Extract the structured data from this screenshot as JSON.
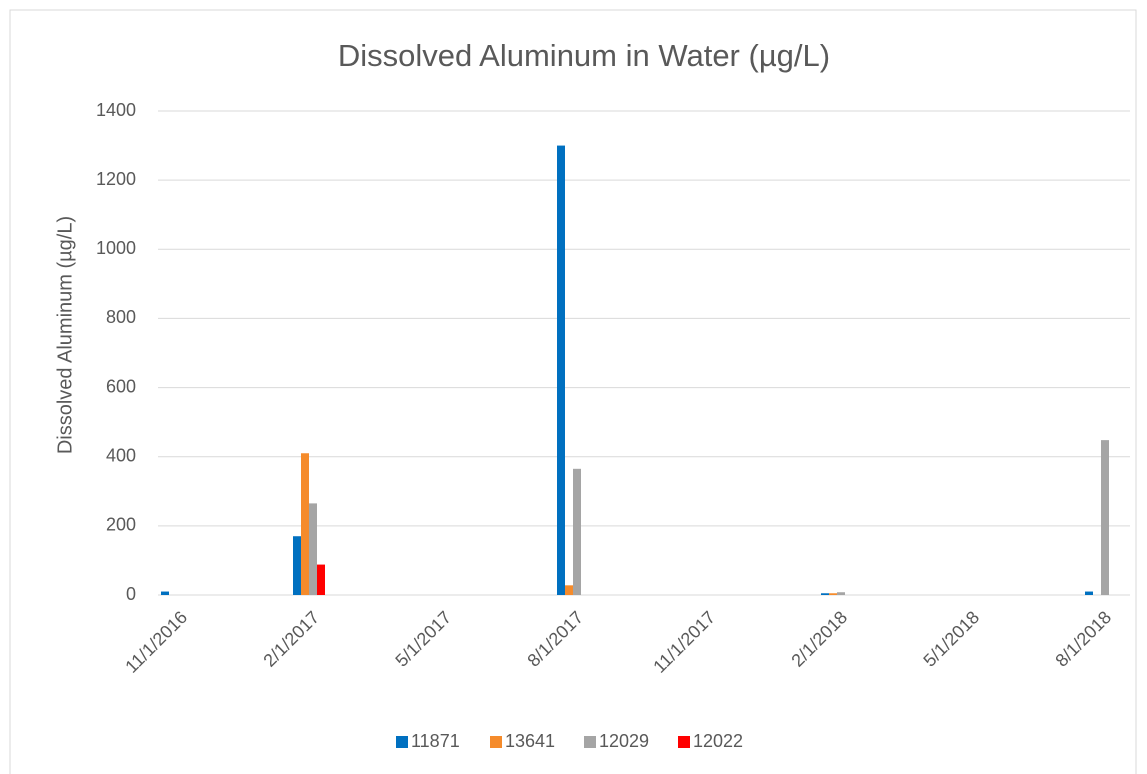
{
  "chart_data": {
    "type": "bar",
    "title": "Dissolved Aluminum in Water (µg/L)",
    "y_label": "Dissolved Aluminum (µg/L)",
    "categories": [
      "11/1/2016",
      "2/1/2017",
      "5/1/2017",
      "8/1/2017",
      "11/1/2017",
      "2/1/2018",
      "5/1/2018",
      "8/1/2018"
    ],
    "series": [
      {
        "name": "11871",
        "color": "#0070c0",
        "values": [
          10,
          170,
          null,
          1300,
          null,
          5,
          null,
          10
        ]
      },
      {
        "name": "13641",
        "color": "#f58b2b",
        "values": [
          null,
          410,
          null,
          28,
          null,
          5,
          null,
          null
        ]
      },
      {
        "name": "12029",
        "color": "#a5a5a5",
        "values": [
          null,
          265,
          null,
          365,
          null,
          8,
          null,
          448
        ]
      },
      {
        "name": "12022",
        "color": "#ff0000",
        "values": [
          null,
          88,
          null,
          null,
          null,
          null,
          null,
          null
        ]
      }
    ],
    "ylim": [
      0,
      1400
    ],
    "yticks": [
      0,
      200,
      400,
      600,
      800,
      1000,
      1200,
      1400
    ],
    "grid": true,
    "legend": "bottom"
  }
}
